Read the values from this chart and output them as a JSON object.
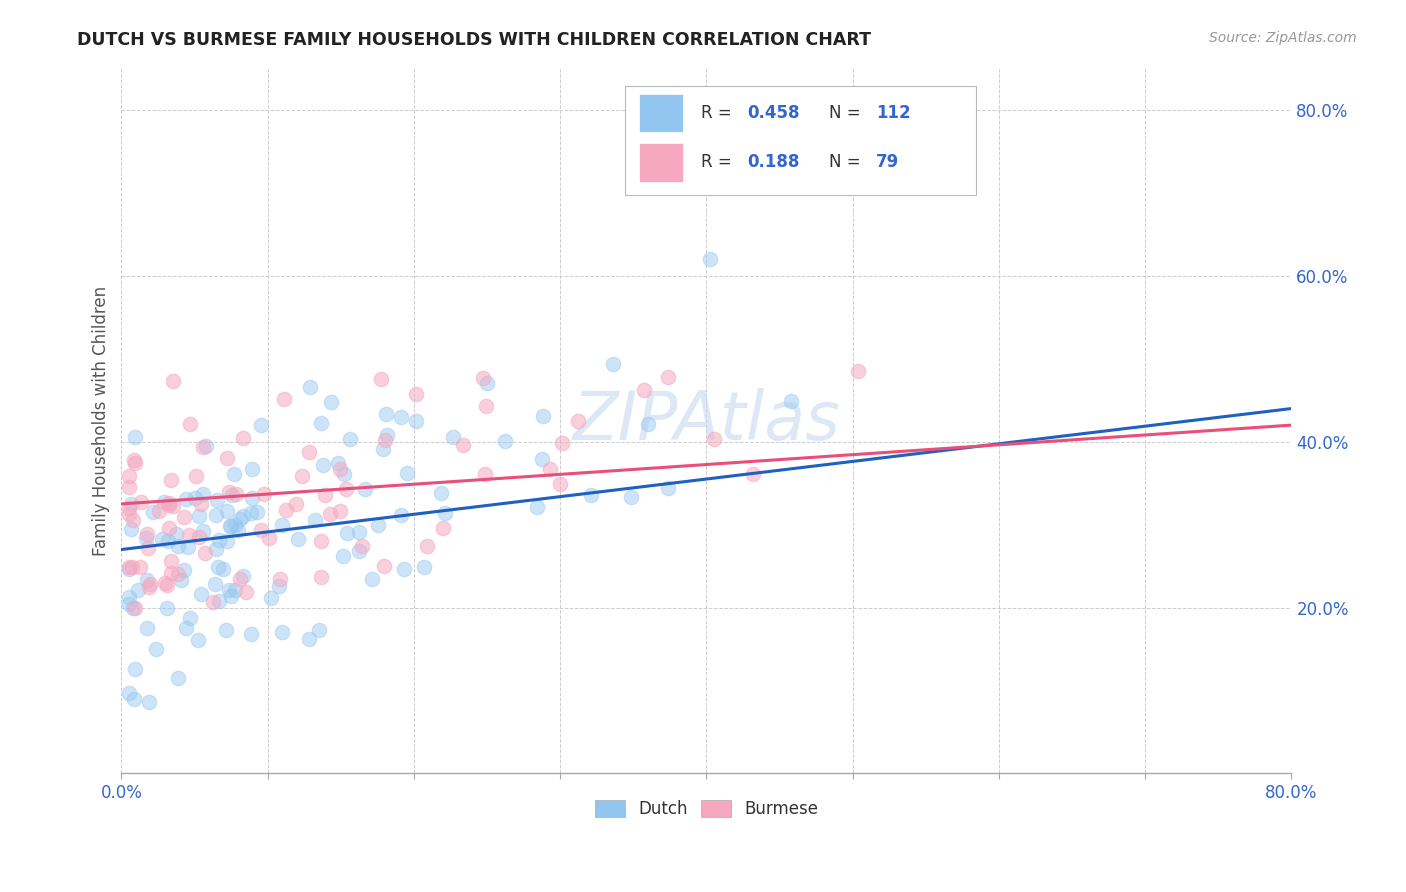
{
  "title": "DUTCH VS BURMESE FAMILY HOUSEHOLDS WITH CHILDREN CORRELATION CHART",
  "source": "Source: ZipAtlas.com",
  "ylabel": "Family Households with Children",
  "xlim": [
    0.0,
    0.8
  ],
  "ylim": [
    0.0,
    0.85
  ],
  "xtick_positions": [
    0.0,
    0.1,
    0.2,
    0.3,
    0.4,
    0.5,
    0.6,
    0.7,
    0.8
  ],
  "xticklabels": [
    "0.0%",
    "",
    "",
    "",
    "",
    "",
    "",
    "",
    "80.0%"
  ],
  "ytick_positions": [
    0.2,
    0.4,
    0.6,
    0.8
  ],
  "ytick_labels": [
    "20.0%",
    "40.0%",
    "60.0%",
    "80.0%"
  ],
  "dutch_color": "#92c5f0",
  "burmese_color": "#f5a8c0",
  "trend_dutch_color": "#2060c0",
  "trend_burmese_color": "#e8507a",
  "dutch_R": 0.458,
  "dutch_N": 112,
  "burmese_R": 0.188,
  "burmese_N": 79,
  "legend_text_color": "#3366cc",
  "title_color": "#222222",
  "watermark": "ZIPAtlas"
}
